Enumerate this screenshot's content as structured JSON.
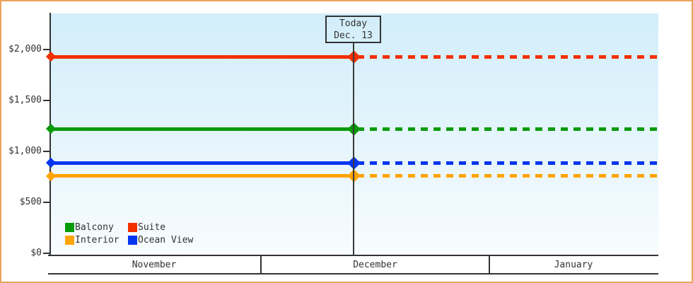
{
  "page": {
    "background": "#ffffff",
    "frame_border_color": "#e9a55c",
    "text_color": "#333333"
  },
  "chart_data": {
    "type": "line",
    "title": "",
    "description": "Cruise cabin price timeline; constant price per cabin category, solid line before today marker, dashed line after",
    "months": [
      "November",
      "December",
      "January"
    ],
    "today": {
      "label_line1": "Today",
      "label_line2": "Dec. 13"
    },
    "y_axis": {
      "ticks": [
        {
          "value": 0,
          "label": "$0"
        },
        {
          "value": 500,
          "label": "$500"
        },
        {
          "value": 1000,
          "label": "$1,000"
        },
        {
          "value": 1500,
          "label": "$1,500"
        },
        {
          "value": 2000,
          "label": "$2,000"
        }
      ],
      "ylim": [
        0,
        2360
      ]
    },
    "series": [
      {
        "name": "Suite",
        "color": "#f23000",
        "price": 1930
      },
      {
        "name": "Balcony",
        "color": "#089b08",
        "price": 1220
      },
      {
        "name": "Ocean View",
        "color": "#0535f0",
        "price": 888
      },
      {
        "name": "Interior",
        "color": "#ffa405",
        "price": 760
      }
    ],
    "legend": [
      {
        "label": "Balcony",
        "color": "#089b08"
      },
      {
        "label": "Suite",
        "color": "#f23000"
      },
      {
        "label": "Interior",
        "color": "#ffa405"
      },
      {
        "label": "Ocean View",
        "color": "#0535f0"
      }
    ],
    "line_style": {
      "before_today": "solid",
      "after_today": "dashed",
      "marker": "diamond"
    },
    "grid": false,
    "legend_position": "bottom-left inside plot"
  }
}
